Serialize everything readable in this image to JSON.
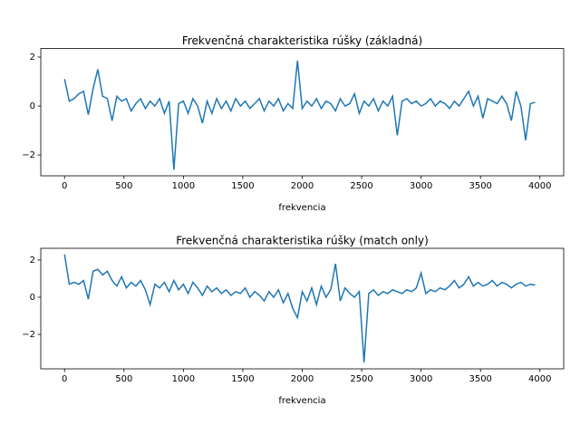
{
  "chart_data": [
    {
      "type": "line",
      "title": "Frekvenčná charakteristika rúšky (základná)",
      "xlabel": "frekvencia",
      "color": "#1f77b4",
      "x": [
        0,
        40,
        80,
        120,
        160,
        200,
        240,
        280,
        320,
        360,
        400,
        440,
        480,
        520,
        560,
        600,
        640,
        680,
        720,
        760,
        800,
        840,
        880,
        920,
        960,
        1000,
        1040,
        1080,
        1120,
        1160,
        1200,
        1240,
        1280,
        1320,
        1360,
        1400,
        1440,
        1480,
        1520,
        1560,
        1600,
        1640,
        1680,
        1720,
        1760,
        1800,
        1840,
        1880,
        1920,
        1960,
        2000,
        2040,
        2080,
        2120,
        2160,
        2200,
        2240,
        2280,
        2320,
        2360,
        2400,
        2440,
        2480,
        2520,
        2560,
        2600,
        2640,
        2680,
        2720,
        2760,
        2800,
        2840,
        2880,
        2920,
        2960,
        3000,
        3040,
        3080,
        3120,
        3160,
        3200,
        3240,
        3280,
        3320,
        3360,
        3400,
        3440,
        3480,
        3520,
        3560,
        3600,
        3640,
        3680,
        3720,
        3760,
        3800,
        3840,
        3880,
        3920,
        3960
      ],
      "values": [
        1.1,
        0.2,
        0.3,
        0.5,
        0.6,
        -0.35,
        0.7,
        1.5,
        0.4,
        0.3,
        -0.6,
        0.4,
        0.2,
        0.3,
        -0.2,
        0.1,
        0.3,
        -0.1,
        0.2,
        0.0,
        0.3,
        -0.3,
        0.2,
        -2.6,
        0.1,
        0.2,
        -0.3,
        0.3,
        0.0,
        -0.7,
        0.2,
        -0.3,
        0.3,
        -0.1,
        0.2,
        -0.2,
        0.3,
        0.0,
        0.2,
        -0.1,
        0.1,
        0.3,
        -0.2,
        0.2,
        0.0,
        0.3,
        -0.2,
        0.1,
        -0.1,
        1.85,
        -0.1,
        0.2,
        0.0,
        0.3,
        -0.1,
        0.2,
        0.1,
        -0.2,
        0.3,
        0.0,
        0.1,
        0.5,
        -0.3,
        0.2,
        0.0,
        0.3,
        -0.2,
        0.2,
        0.0,
        0.4,
        -1.2,
        0.2,
        0.3,
        0.1,
        0.2,
        0.0,
        0.1,
        0.3,
        0.0,
        0.2,
        0.1,
        -0.1,
        0.2,
        0.0,
        0.3,
        0.6,
        0.0,
        0.4,
        -0.5,
        0.3,
        0.2,
        0.1,
        0.4,
        0.1,
        -0.6,
        0.6,
        0.0,
        -1.4,
        0.1,
        0.15
      ],
      "xlim": [
        -200,
        4200
      ],
      "xticks": [
        0,
        500,
        1000,
        1500,
        2000,
        2500,
        3000,
        3500,
        4000
      ],
      "ylim": [
        -2.85,
        2.35
      ],
      "yticks": [
        {
          "value": -2,
          "label": "−2"
        },
        0,
        2
      ]
    },
    {
      "type": "line",
      "title": "Frekvenčná charakteristika rúšky (match only)",
      "xlabel": "frekvencia",
      "color": "#1f77b4",
      "x": [
        0,
        40,
        80,
        120,
        160,
        200,
        240,
        280,
        320,
        360,
        400,
        440,
        480,
        520,
        560,
        600,
        640,
        680,
        720,
        760,
        800,
        840,
        880,
        920,
        960,
        1000,
        1040,
        1080,
        1120,
        1160,
        1200,
        1240,
        1280,
        1320,
        1360,
        1400,
        1440,
        1480,
        1520,
        1560,
        1600,
        1640,
        1680,
        1720,
        1760,
        1800,
        1840,
        1880,
        1920,
        1960,
        2000,
        2040,
        2080,
        2120,
        2160,
        2200,
        2240,
        2280,
        2320,
        2360,
        2400,
        2440,
        2480,
        2520,
        2560,
        2600,
        2640,
        2680,
        2720,
        2760,
        2800,
        2840,
        2880,
        2920,
        2960,
        3000,
        3040,
        3080,
        3120,
        3160,
        3200,
        3240,
        3280,
        3320,
        3360,
        3400,
        3440,
        3480,
        3520,
        3560,
        3600,
        3640,
        3680,
        3720,
        3760,
        3800,
        3840,
        3880,
        3920,
        3960
      ],
      "values": [
        2.3,
        0.7,
        0.8,
        0.7,
        0.9,
        -0.1,
        1.4,
        1.5,
        1.2,
        1.4,
        0.9,
        0.6,
        1.1,
        0.5,
        0.8,
        0.6,
        0.9,
        0.4,
        -0.4,
        0.7,
        0.5,
        0.8,
        0.3,
        0.9,
        0.4,
        0.7,
        0.2,
        0.8,
        0.5,
        0.1,
        0.6,
        0.3,
        0.5,
        0.2,
        0.4,
        0.1,
        0.3,
        0.2,
        0.5,
        0.0,
        0.3,
        0.1,
        -0.2,
        0.3,
        0.0,
        0.4,
        -0.3,
        0.2,
        -0.6,
        -1.1,
        0.3,
        -0.2,
        0.5,
        -0.4,
        0.6,
        0.0,
        0.4,
        1.8,
        -0.2,
        0.5,
        0.2,
        0.0,
        0.3,
        -3.5,
        0.2,
        0.4,
        0.1,
        0.3,
        0.2,
        0.4,
        0.3,
        0.2,
        0.4,
        0.3,
        0.5,
        1.3,
        0.2,
        0.4,
        0.3,
        0.5,
        0.4,
        0.6,
        0.9,
        0.5,
        0.7,
        1.1,
        0.6,
        0.8,
        0.6,
        0.7,
        0.9,
        0.6,
        0.8,
        0.7,
        0.5,
        0.7,
        0.8,
        0.6,
        0.7,
        0.65
      ],
      "xlim": [
        -200,
        4200
      ],
      "xticks": [
        0,
        500,
        1000,
        1500,
        2000,
        2500,
        3000,
        3500,
        4000
      ],
      "ylim": [
        -3.85,
        2.63
      ],
      "yticks": [
        {
          "value": -2,
          "label": "−2"
        },
        0,
        2
      ]
    }
  ]
}
